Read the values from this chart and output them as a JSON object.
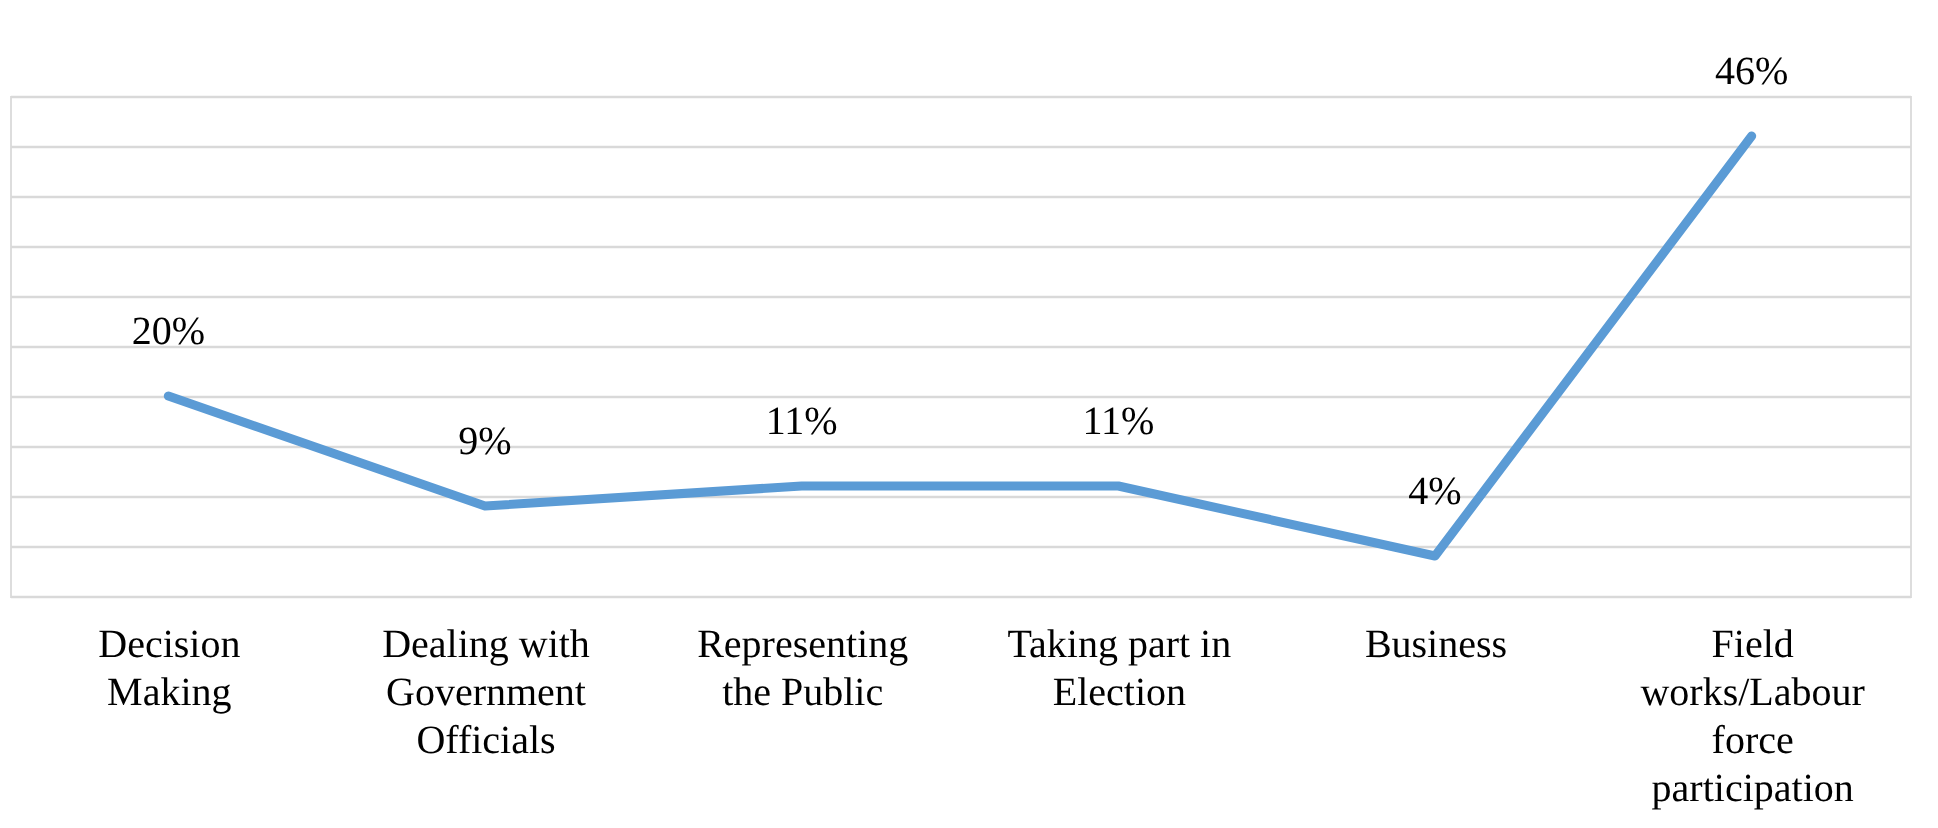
{
  "chart_data": {
    "type": "line",
    "categories": [
      "Decision Making",
      "Dealing with Government Officials",
      "Representing the Public",
      "Taking part in Election",
      "Business",
      "Field works/Labour force participation"
    ],
    "series": [
      {
        "color": "#5b9bd5",
        "values": [
          20,
          9,
          11,
          11,
          4,
          46
        ],
        "value_labels": [
          "20%",
          "9%",
          "11%",
          "11%",
          "4%",
          "46%"
        ]
      }
    ],
    "grid": "y",
    "tick_labels": "x",
    "marker": "none",
    "line_style": "solid"
  }
}
